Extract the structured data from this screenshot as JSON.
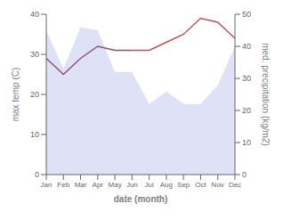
{
  "chart_data": {
    "type": "line",
    "xlabel": "date (month)",
    "ylabel": "max temp (C)",
    "y2label": "med. precipitation (kg/m2)",
    "categories": [
      "Jan",
      "Feb",
      "Mar",
      "Apr",
      "May",
      "Jun",
      "Jul",
      "Aug",
      "Sep",
      "Oct",
      "Nov",
      "Dec"
    ],
    "series": [
      {
        "type": "area",
        "axis": "y2",
        "color": "#c5caf0",
        "values": [
          45,
          33,
          46,
          45,
          32,
          32,
          22,
          26,
          22,
          22,
          28,
          40
        ]
      },
      {
        "type": "line",
        "color": "#8b4f6e",
        "values": [
          29,
          25,
          29,
          32,
          31,
          31,
          null,
          null,
          null,
          null,
          null,
          null
        ]
      },
      {
        "type": "line",
        "color": "#c0504d",
        "values": [
          null,
          null,
          null,
          null,
          null,
          31,
          31,
          33,
          35,
          39,
          38,
          34
        ]
      }
    ],
    "ylim": [
      0,
      40
    ],
    "yticks": [
      0,
      10,
      20,
      30,
      40
    ],
    "y2lim": [
      0,
      50
    ],
    "y2ticks": [
      0,
      10,
      20,
      30,
      40,
      50
    ],
    "grid": false
  }
}
